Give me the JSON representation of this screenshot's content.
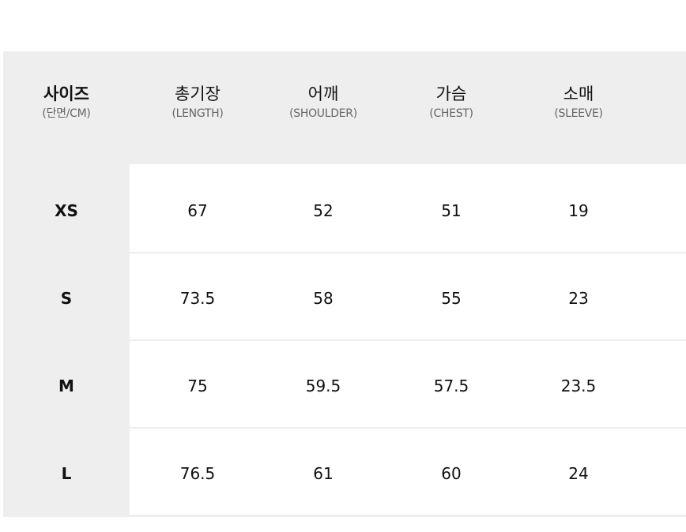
{
  "header": {
    "size": {
      "title": "사이즈",
      "sub": "(단면/CM)"
    },
    "columns": [
      {
        "title": "총기장",
        "sub": "(LENGTH)"
      },
      {
        "title": "어깨",
        "sub": "(SHOULDER)"
      },
      {
        "title": "가슴",
        "sub": "(CHEST)"
      },
      {
        "title": "소매",
        "sub": "(SLEEVE)"
      }
    ]
  },
  "rows": [
    {
      "size": "XS",
      "values": [
        "67",
        "52",
        "51",
        "19"
      ]
    },
    {
      "size": "S",
      "values": [
        "73.5",
        "58",
        "55",
        "23"
      ]
    },
    {
      "size": "M",
      "values": [
        "75",
        "59.5",
        "57.5",
        "23.5"
      ]
    },
    {
      "size": "L",
      "values": [
        "76.5",
        "61",
        "60",
        "24"
      ]
    }
  ]
}
